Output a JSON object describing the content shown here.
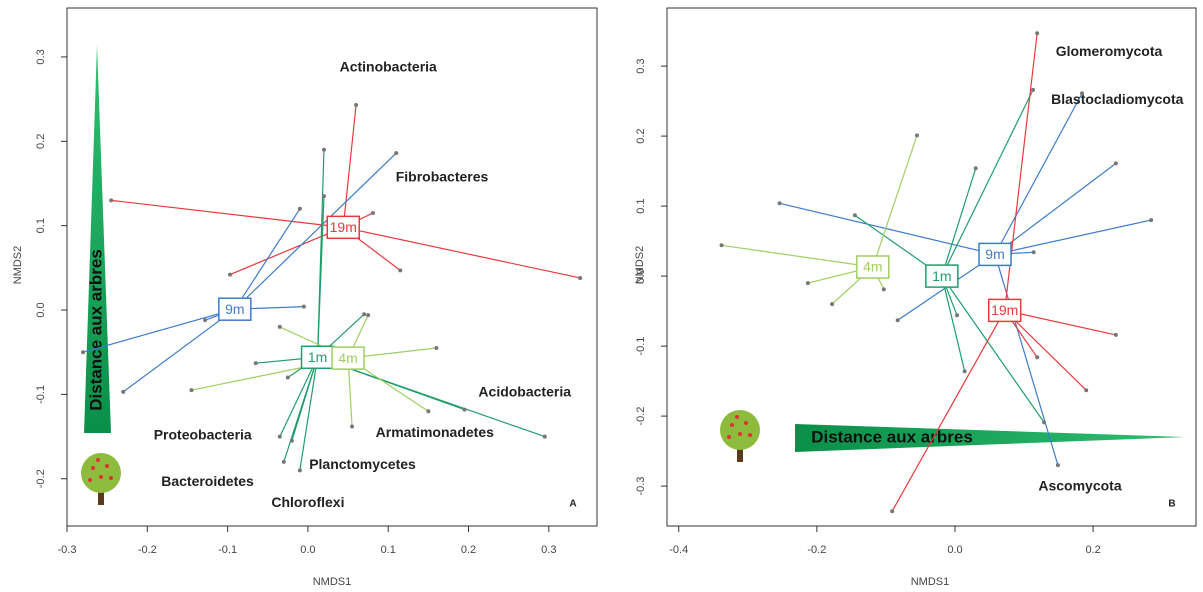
{
  "chart_data": [
    {
      "type": "scatter",
      "panel_label": "A",
      "xlabel": "NMDS1",
      "ylabel": "NMDS2",
      "xlim": [
        -0.3,
        0.36
      ],
      "ylim": [
        -0.256,
        0.358
      ],
      "xticks": [
        -0.3,
        -0.2,
        -0.1,
        {
          "value": 0,
          "label": "0.0"
        },
        0.1,
        0.2,
        0.3
      ],
      "yticks": [
        -0.2,
        -0.1,
        {
          "value": 0,
          "label": "0.0"
        },
        0.1,
        0.2,
        0.3
      ],
      "gradient_label": "Distance aux arbres",
      "annotations": [
        "Actinobacteria",
        "Fibrobacteres",
        "Acidobacteria",
        "Armatimonadetes",
        "Planctomycetes",
        "Proteobacteria",
        "Bacteroidetes",
        "Chloroflexi"
      ],
      "series": [
        {
          "name": "19m",
          "color": "#e8393b",
          "centroid": [
            0.044,
            0.098
          ],
          "x": [
            -0.245,
            0.339,
            0.06,
            -0.097,
            0.081,
            0.115
          ],
          "y": [
            0.13,
            0.038,
            0.243,
            0.042,
            0.115,
            0.047
          ]
        },
        {
          "name": "9m",
          "color": "#3d7cc9",
          "centroid": [
            -0.091,
            0.001
          ],
          "x": [
            0.11,
            -0.28,
            -0.23,
            -0.128,
            -0.005,
            -0.01
          ],
          "y": [
            0.186,
            -0.05,
            -0.097,
            -0.012,
            0.004,
            0.12
          ]
        },
        {
          "name": "1m",
          "color": "#1f9e6b",
          "centroid": [
            0.012,
            -0.056
          ],
          "x": [
            0.02,
            0.02,
            0.295,
            0.195,
            -0.025,
            -0.065,
            0.07,
            -0.03,
            -0.01,
            -0.02,
            -0.035
          ],
          "y": [
            0.19,
            0.135,
            -0.15,
            -0.118,
            -0.08,
            -0.063,
            -0.005,
            -0.18,
            -0.19,
            -0.155,
            -0.15
          ]
        },
        {
          "name": "4m",
          "color": "#9fcf63",
          "centroid": [
            0.05,
            -0.057
          ],
          "x": [
            0.16,
            -0.145,
            0.055,
            0.15,
            -0.035,
            0.075
          ],
          "y": [
            -0.045,
            -0.095,
            -0.138,
            -0.12,
            -0.02,
            -0.006
          ]
        }
      ]
    },
    {
      "type": "scatter",
      "panel_label": "B",
      "xlabel": "NMDS1",
      "ylabel": "NMDS2",
      "xlim": [
        -0.417,
        0.349
      ],
      "ylim": [
        -0.357,
        0.383
      ],
      "xticks": [
        -0.4,
        -0.2,
        {
          "value": 0,
          "label": "0.0"
        },
        0.2
      ],
      "yticks": [
        -0.3,
        -0.2,
        -0.1,
        {
          "value": 0,
          "label": "0.0"
        },
        0.1,
        0.2,
        0.3
      ],
      "gradient_label": "Distance aux arbres",
      "annotations": [
        "Glomeromycota",
        "Blastocladiomycota",
        "Ascomycota"
      ],
      "series": [
        {
          "name": "9m",
          "color": "#3d7cc9",
          "centroid": [
            0.058,
            0.031
          ],
          "x": [
            0.233,
            0.284,
            0.184,
            0.114,
            -0.254,
            -0.083,
            0.149
          ],
          "y": [
            0.161,
            0.08,
            0.261,
            0.034,
            0.104,
            -0.063,
            -0.27
          ]
        },
        {
          "name": "1m",
          "color": "#1f9e6b",
          "centroid": [
            -0.019,
            0.0
          ],
          "x": [
            0.03,
            0.113,
            -0.145,
            0.003,
            0.129,
            0.014
          ],
          "y": [
            0.154,
            0.266,
            0.087,
            -0.056,
            -0.209,
            -0.136
          ]
        },
        {
          "name": "19m",
          "color": "#e8393b",
          "centroid": [
            0.072,
            -0.049
          ],
          "x": [
            0.119,
            0.233,
            0.19,
            -0.091,
            0.119
          ],
          "y": [
            0.347,
            -0.084,
            -0.163,
            -0.336,
            -0.116
          ]
        },
        {
          "name": "4m",
          "color": "#9fcf63",
          "centroid": [
            -0.119,
            0.013
          ],
          "x": [
            -0.338,
            -0.055,
            -0.103,
            -0.213,
            -0.178
          ],
          "y": [
            0.044,
            0.201,
            -0.019,
            -0.01,
            -0.04
          ]
        }
      ]
    }
  ]
}
